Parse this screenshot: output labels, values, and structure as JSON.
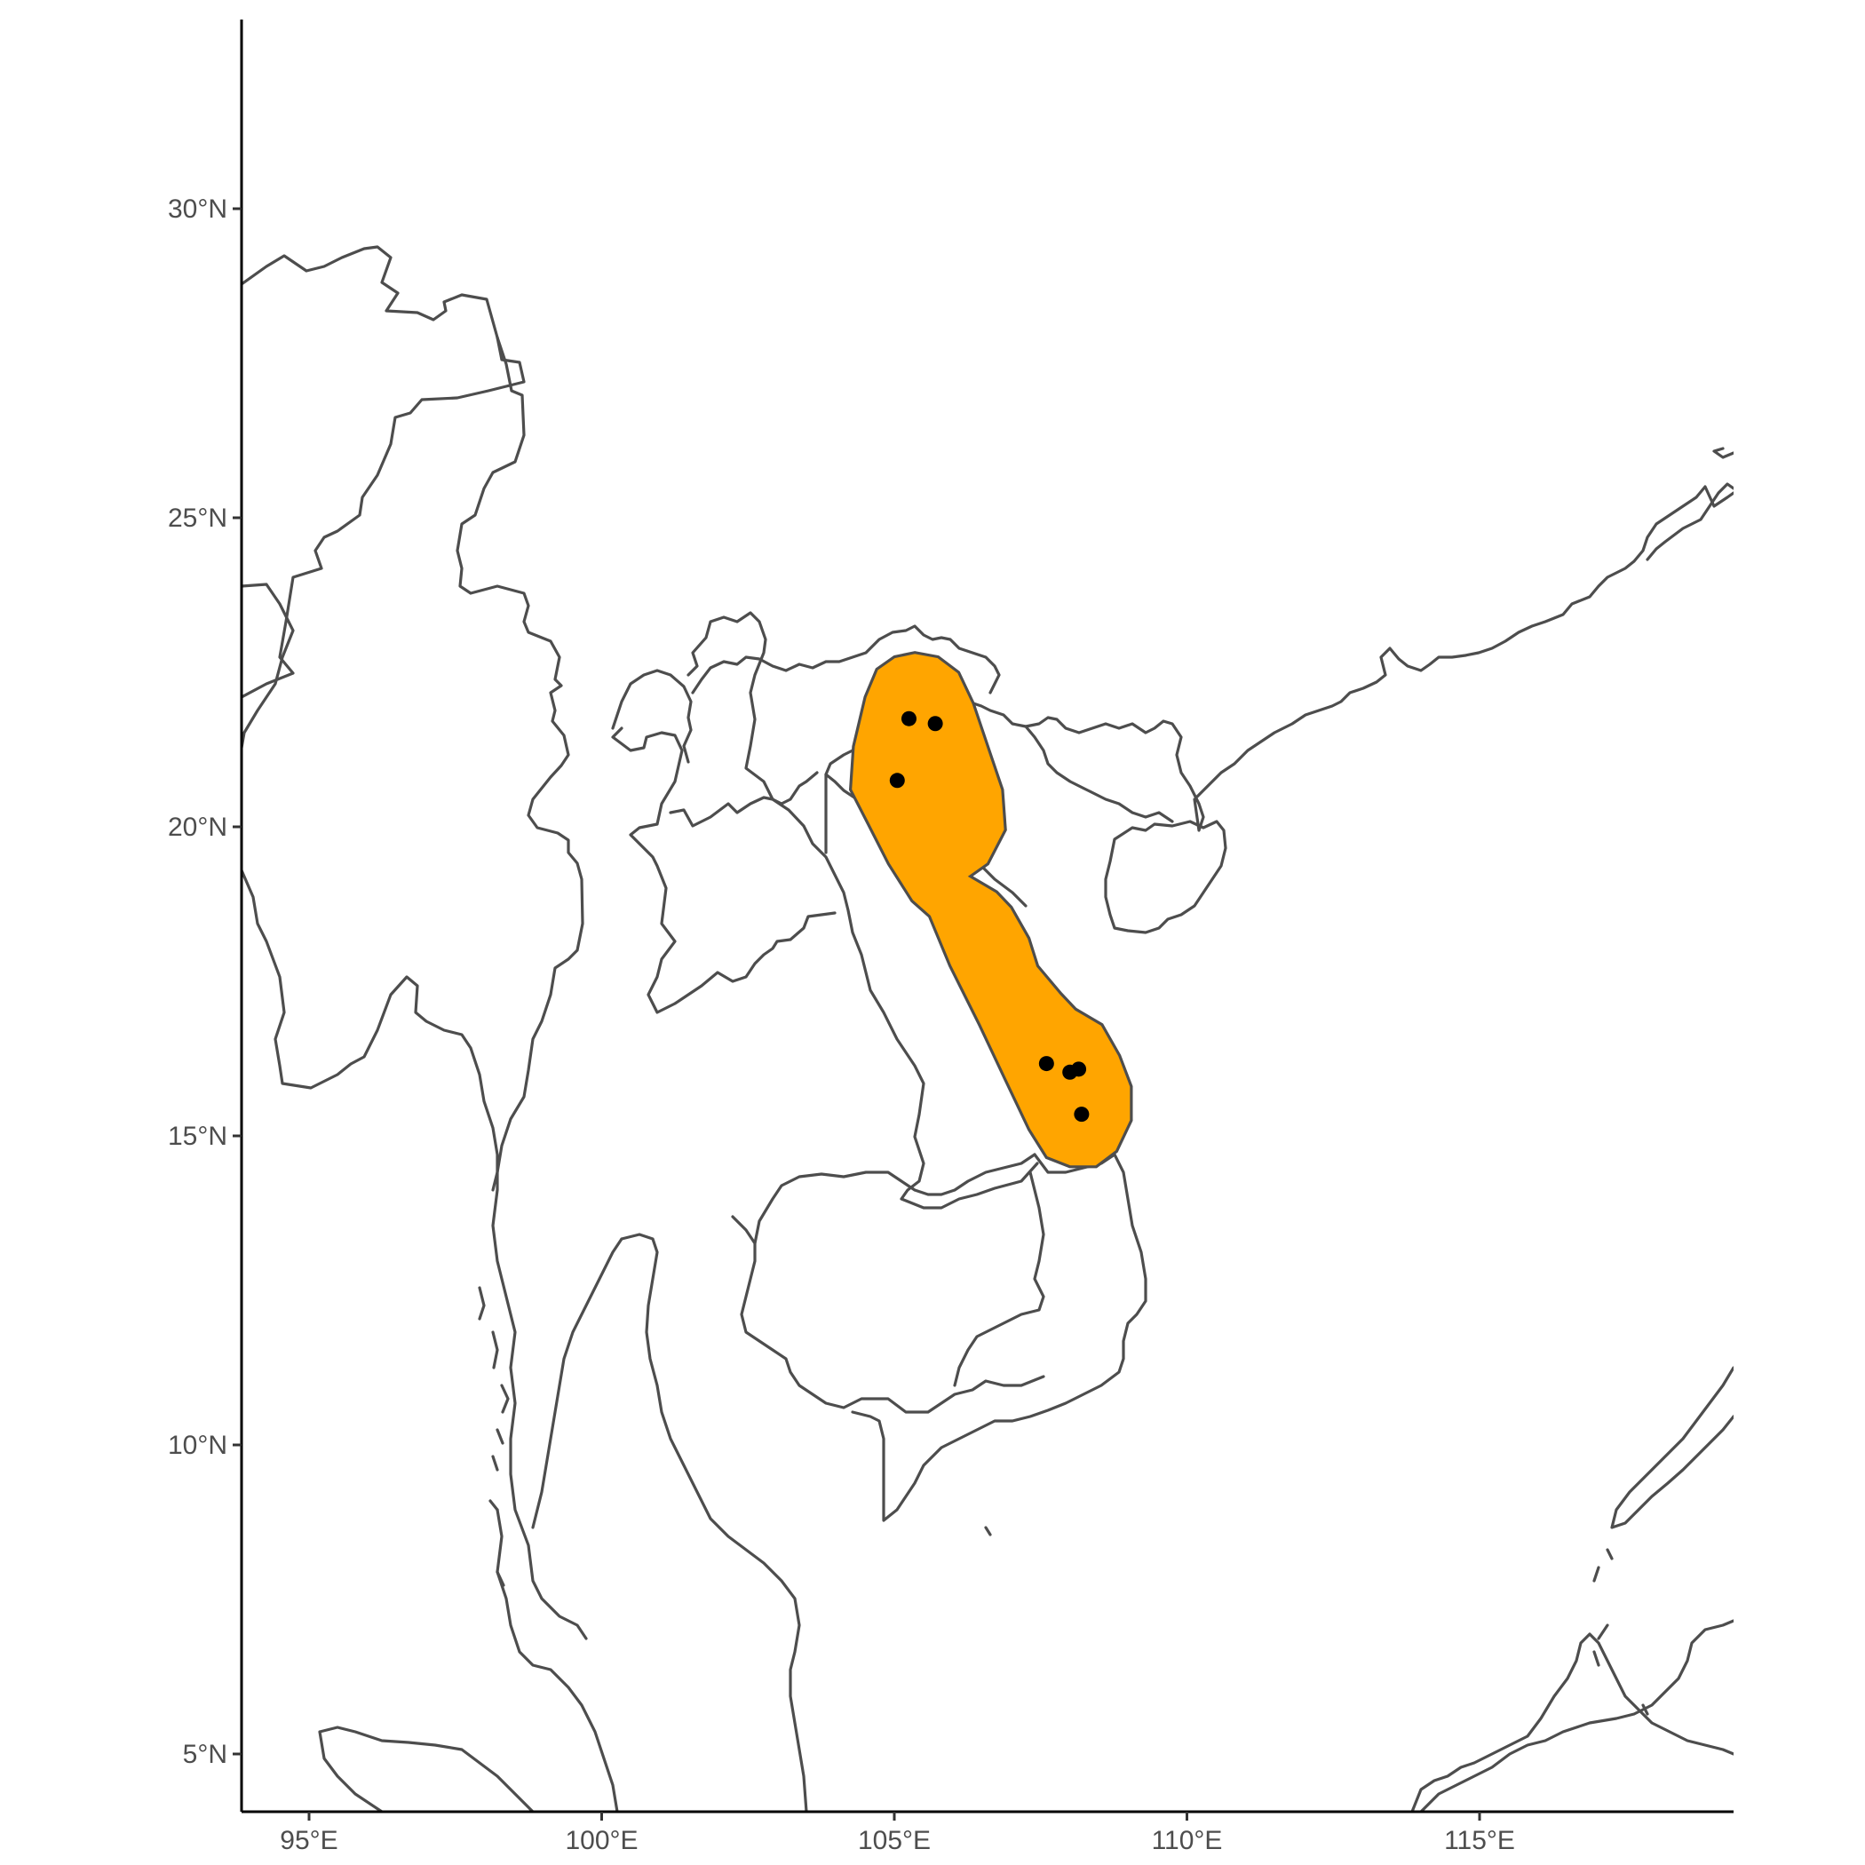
{
  "map": {
    "x_axis": {
      "label": "",
      "range": [
        93.8,
        119.2
      ],
      "ticks": [
        {
          "value": 95,
          "label": "95°E"
        },
        {
          "value": 100,
          "label": "100°E"
        },
        {
          "value": 105,
          "label": "105°E"
        },
        {
          "value": 110,
          "label": "110°E"
        },
        {
          "value": 115,
          "label": "115°E"
        }
      ]
    },
    "y_axis": {
      "label": "",
      "range": [
        4.0,
        33.0
      ],
      "ticks": [
        {
          "value": 5,
          "label": "5°N"
        },
        {
          "value": 10,
          "label": "10°N"
        },
        {
          "value": 15,
          "label": "15°N"
        },
        {
          "value": 20,
          "label": "20°N"
        },
        {
          "value": 25,
          "label": "25°N"
        },
        {
          "value": 30,
          "label": "30°N"
        }
      ]
    },
    "range_polygon_color": "#FFA500",
    "border_color": "#4d4d4d",
    "point_color": "#000000",
    "occurrence_points": [
      {
        "lon": 105.25,
        "lat": 21.75
      },
      {
        "lon": 105.7,
        "lat": 21.67
      },
      {
        "lon": 105.05,
        "lat": 20.75
      },
      {
        "lon": 107.6,
        "lat": 16.17
      },
      {
        "lon": 108.0,
        "lat": 16.03
      },
      {
        "lon": 108.15,
        "lat": 16.08
      },
      {
        "lon": 108.2,
        "lat": 15.35
      }
    ],
    "grid": false
  }
}
